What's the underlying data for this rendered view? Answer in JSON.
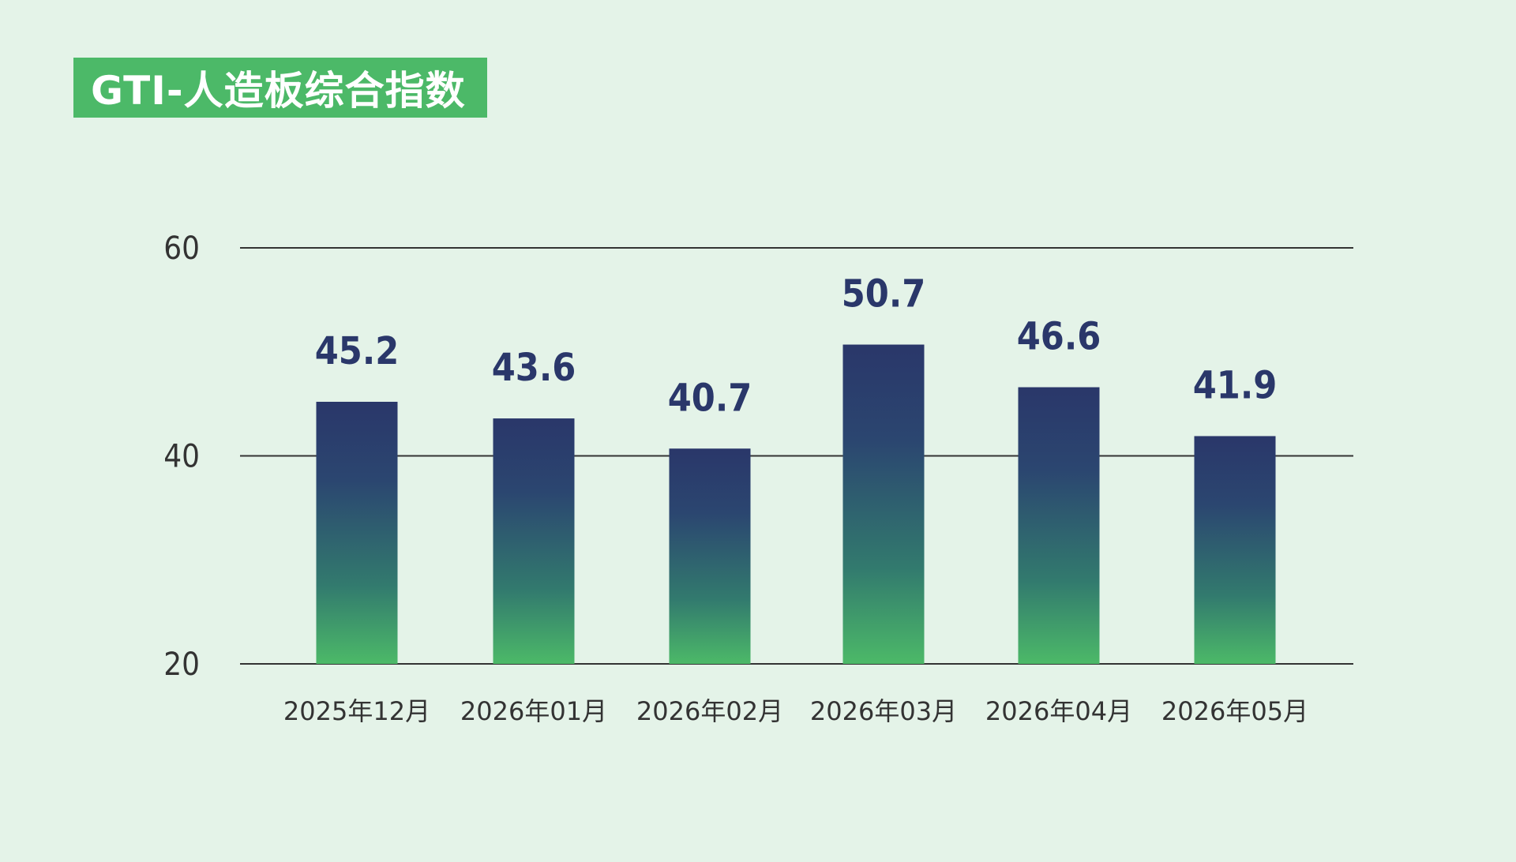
{
  "title": "GTI-人造板综合指数",
  "colors": {
    "background": "#e4f3e8",
    "title_bg": "#4cb968",
    "title_text": "#ffffff",
    "bar_top": "#2a376a",
    "bar_bottom": "#4cb968",
    "value_label": "#2a376a",
    "axis_text": "#333333",
    "grid": "#333333"
  },
  "chart_data": {
    "type": "bar",
    "categories": [
      "2025年12月",
      "2026年01月",
      "2026年02月",
      "2026年03月",
      "2026年04月",
      "2026年05月"
    ],
    "values": [
      45.2,
      43.6,
      40.7,
      50.7,
      46.6,
      41.9
    ],
    "value_labels": [
      "45.2",
      "43.6",
      "40.7",
      "50.7",
      "46.6",
      "41.9"
    ],
    "yticks": [
      20,
      40,
      60
    ],
    "ytick_labels": [
      "20",
      "40",
      "60"
    ],
    "ylim": [
      20,
      60
    ],
    "grid": true,
    "legend": "none",
    "xlabel": "",
    "ylabel": ""
  }
}
